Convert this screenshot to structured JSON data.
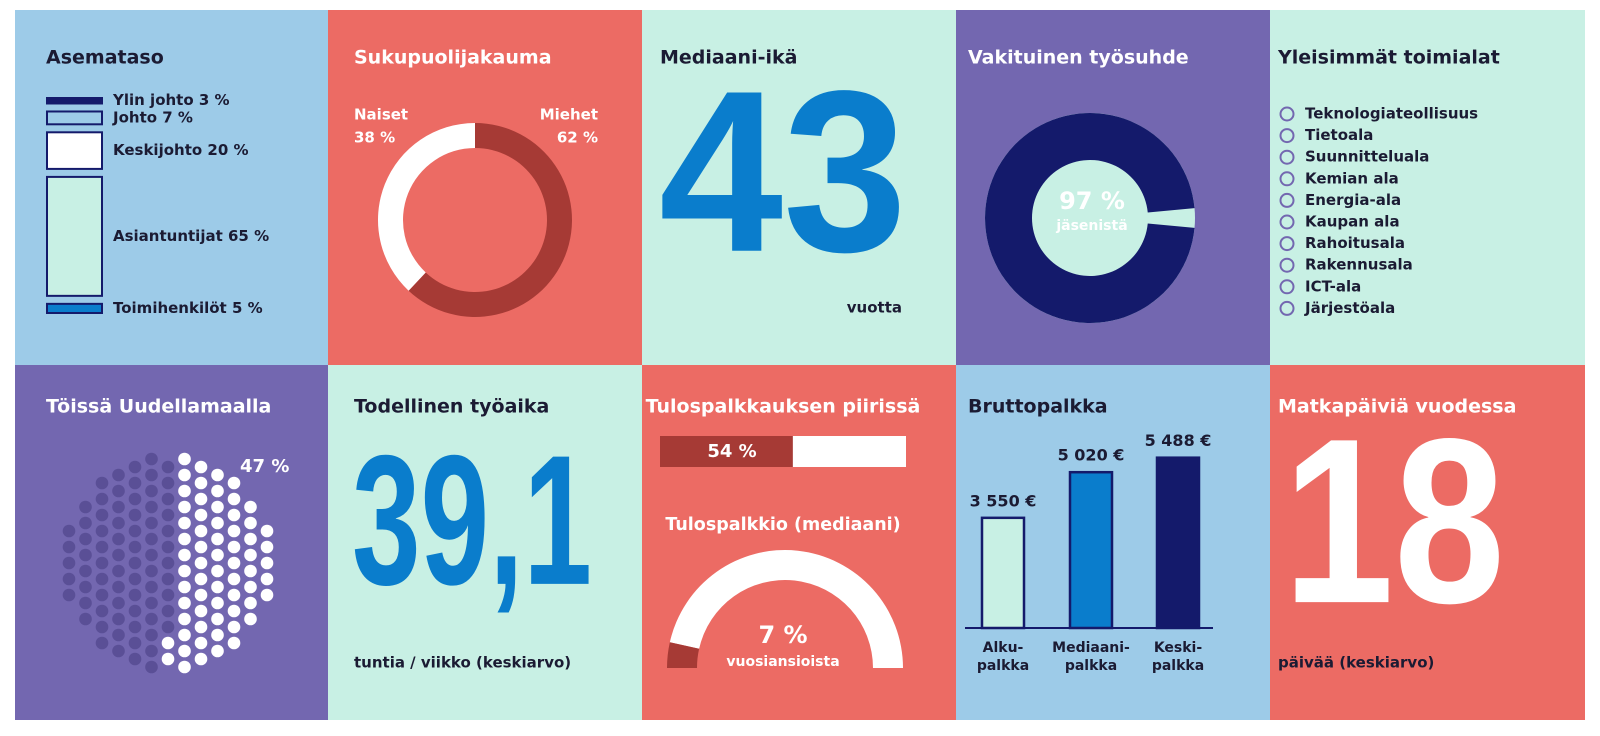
{
  "tiles": {
    "asemataso": {
      "title": "Asemataso",
      "levels": [
        {
          "label": "Ylin johto 3 %",
          "value": 3
        },
        {
          "label": "Johto 7 %",
          "value": 7
        },
        {
          "label": "Keskijohto 20 %",
          "value": 20
        },
        {
          "label": "Asiantuntijat 65 %",
          "value": 65
        },
        {
          "label": "Toimihenkilöt 5 %",
          "value": 5
        }
      ]
    },
    "gender": {
      "title": "Sukupuolijakauma",
      "segments": [
        {
          "name": "Naiset",
          "value": 38,
          "label": "38 %",
          "color": "#ffffff"
        },
        {
          "name": "Miehet",
          "value": 62,
          "label": "62 %",
          "color": "#a63a35"
        }
      ]
    },
    "age": {
      "title": "Mediaani-ikä",
      "value": 43,
      "caption": "vuotta"
    },
    "permanent": {
      "title": "Vakituinen työsuhde",
      "value": 97,
      "label": "97 %",
      "caption": "jäsenistä"
    },
    "industries": {
      "title": "Yleisimmät toimialat",
      "items": [
        "Teknologiateollisuus",
        "Tietoala",
        "Suunnitteluala",
        "Kemian ala",
        "Energia-ala",
        "Kaupan ala",
        "Rahoitusala",
        "Rakennusala",
        "ICT-ala",
        "Järjestöala"
      ]
    },
    "uusimaa": {
      "title": "Töissä Uudellamaalla",
      "value": 47,
      "label": "47 %"
    },
    "hours": {
      "title": "Todellinen työaika",
      "value": 39.1,
      "label": "39,1",
      "caption": "tuntia / viikko (keskiarvo)"
    },
    "bonus": {
      "title": "Tulospalkkauksen piirissä",
      "value": 54,
      "label": "54 %",
      "subtitle": "Tulospalkkio (mediaani)",
      "median": 7,
      "median_label": "7 %",
      "median_caption": "vuosiansioista"
    },
    "salary": {
      "title": "Bruttopalkka",
      "categories": [
        [
          "Alku-",
          "palkka"
        ],
        [
          "Mediaani-",
          "palkka"
        ],
        [
          "Keski-",
          "palkka"
        ]
      ],
      "values": [
        3550,
        5020,
        5488
      ],
      "value_labels": [
        "3 550 €",
        "5 020 €",
        "5 488 €"
      ],
      "colors": [
        "#c8f0e4",
        "#0a7dcc",
        "#141a6b"
      ],
      "ylim": [
        0,
        5800
      ]
    },
    "travel": {
      "title": "Matkapäiviä vuodessa",
      "value": 18,
      "caption": "päivää (keskiarvo)"
    }
  }
}
